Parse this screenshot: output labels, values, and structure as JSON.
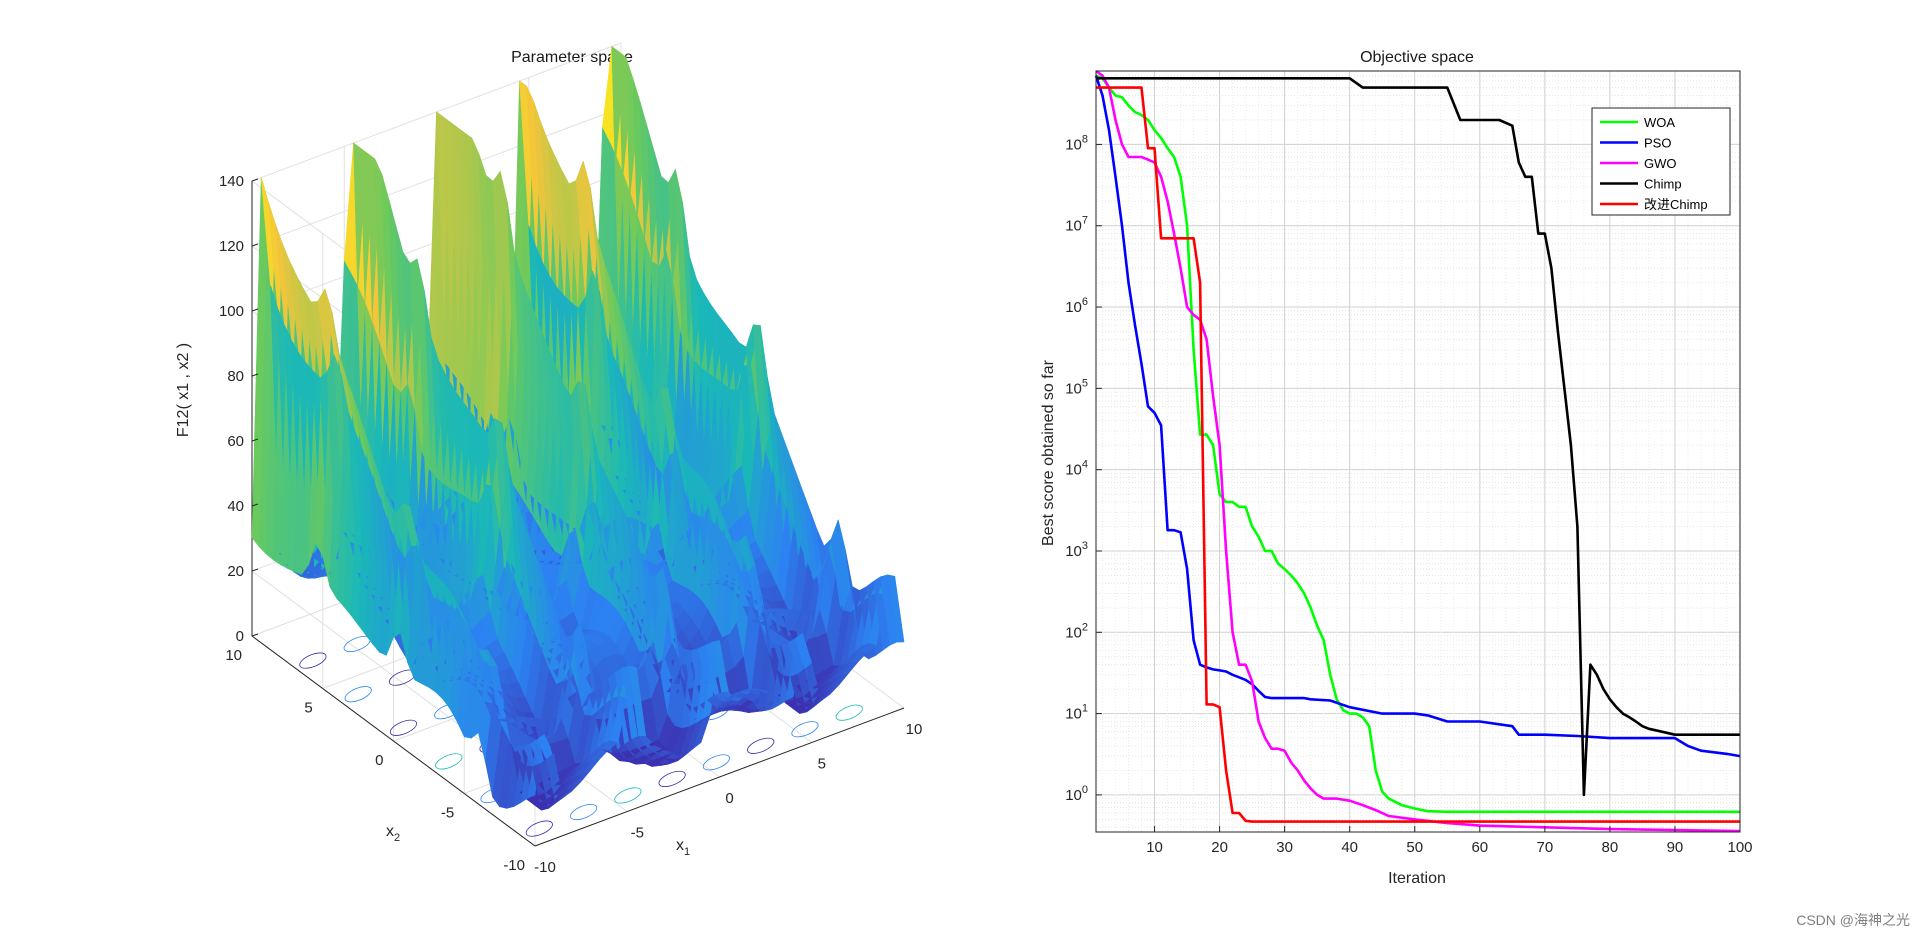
{
  "watermark": "CSDN @海神之光",
  "chart_data": [
    {
      "type": "surface3d",
      "title": "Parameter space",
      "xlabel_main": "x",
      "xlabel_sub": "1",
      "ylabel_main": "x",
      "ylabel_sub": "2",
      "zlabel": "F12( x1 , x2 )",
      "xlim": [
        -10,
        10
      ],
      "ylim": [
        -10,
        10
      ],
      "zlim": [
        0,
        140
      ],
      "x_ticks": [
        "-10",
        "-5",
        "0",
        "5",
        "10"
      ],
      "y_ticks": [
        "-10",
        "-5",
        "0",
        "5",
        "10"
      ],
      "z_ticks": [
        "0",
        "20",
        "40",
        "60",
        "80",
        "100",
        "120",
        "140"
      ],
      "colormap": [
        "#3e26a8",
        "#2c82f2",
        "#1ab8b8",
        "#6cca5c",
        "#f4c53b",
        "#f9fb0e"
      ]
    },
    {
      "type": "line",
      "title": "Objective space",
      "xlabel": "Iteration",
      "ylabel": "Best score obtained so far",
      "yscale": "log",
      "xlim": [
        1,
        100
      ],
      "ylim": [
        0.35,
        800000000
      ],
      "grid": true,
      "legend_position": "top-right",
      "x_ticks": [
        10,
        20,
        30,
        40,
        50,
        60,
        70,
        80,
        90,
        100
      ],
      "y_ticks": [
        {
          "value": 1,
          "base": "10",
          "exp": "0"
        },
        {
          "value": 10,
          "base": "10",
          "exp": "1"
        },
        {
          "value": 100,
          "base": "10",
          "exp": "2"
        },
        {
          "value": 1000,
          "base": "10",
          "exp": "3"
        },
        {
          "value": 10000,
          "base": "10",
          "exp": "4"
        },
        {
          "value": 100000,
          "base": "10",
          "exp": "5"
        },
        {
          "value": 1000000,
          "base": "10",
          "exp": "6"
        },
        {
          "value": 10000000,
          "base": "10",
          "exp": "7"
        },
        {
          "value": 100000000,
          "base": "10",
          "exp": "8"
        }
      ],
      "series": [
        {
          "name": "WOA",
          "color": "#00ff00",
          "x": [
            1,
            2,
            3,
            4,
            5,
            6,
            7,
            8,
            9,
            10,
            11,
            12,
            13,
            14,
            15,
            16,
            17,
            18,
            19,
            20,
            21,
            22,
            23,
            24,
            25,
            26,
            27,
            28,
            29,
            30,
            31,
            32,
            33,
            34,
            35,
            36,
            37,
            38,
            39,
            40,
            41,
            42,
            43,
            44,
            45,
            46,
            48,
            50,
            52,
            55,
            100
          ],
          "y": [
            700000000,
            650000000,
            500000000,
            400000000,
            380000000,
            300000000,
            250000000,
            230000000,
            200000000,
            150000000,
            120000000,
            90000000,
            70000000,
            40000000,
            10000000,
            300000,
            27000,
            27000,
            20000,
            5000,
            4000,
            4000,
            3500,
            3500,
            2000,
            1500,
            1000,
            1000,
            700,
            600,
            500,
            400,
            300,
            200,
            120,
            80,
            30,
            15,
            11,
            10,
            10,
            9,
            7,
            2,
            1.1,
            0.9,
            0.75,
            0.68,
            0.63,
            0.62,
            0.62
          ]
        },
        {
          "name": "PSO",
          "color": "#0000ff",
          "x": [
            1,
            2,
            3,
            4,
            5,
            6,
            7,
            8,
            9,
            10,
            11,
            12,
            13,
            14,
            15,
            16,
            17,
            18,
            19,
            20,
            21,
            22,
            23,
            24,
            25,
            26,
            27,
            28,
            33,
            34,
            37,
            40,
            45,
            50,
            52,
            55,
            60,
            65,
            66,
            70,
            75,
            80,
            90,
            92,
            94,
            98,
            100
          ],
          "y": [
            700000000,
            400000000,
            150000000,
            40000000,
            10000000,
            2000000,
            600000,
            200000,
            60000,
            50000,
            35000,
            1800,
            1800,
            1700,
            600,
            80,
            40,
            37,
            35,
            34,
            33,
            30,
            28,
            26,
            23,
            19,
            16,
            15.5,
            15.5,
            15,
            14.5,
            12,
            10,
            10,
            9.5,
            8,
            8,
            7,
            5.5,
            5.5,
            5.3,
            5,
            5,
            4,
            3.5,
            3.2,
            3
          ]
        },
        {
          "name": "GWO",
          "color": "#ff00ff",
          "x": [
            1,
            2,
            3,
            4,
            5,
            6,
            7,
            8,
            9,
            10,
            11,
            12,
            13,
            14,
            15,
            16,
            17,
            18,
            19,
            20,
            21,
            22,
            23,
            24,
            25,
            26,
            27,
            28,
            29,
            30,
            31,
            32,
            33,
            34,
            35,
            36,
            38,
            40,
            42,
            44,
            46,
            50,
            55,
            60,
            70,
            80,
            90,
            100
          ],
          "y": [
            800000000,
            700000000,
            500000000,
            200000000,
            100000000,
            70000000,
            70000000,
            70000000,
            65000000,
            60000000,
            40000000,
            20000000,
            8000000,
            3000000,
            1000000,
            800000,
            700000,
            400000,
            80000,
            20000,
            1000,
            100,
            40,
            40,
            25,
            8,
            5,
            3.7,
            3.7,
            3.5,
            2.5,
            2,
            1.5,
            1.2,
            1,
            0.9,
            0.9,
            0.85,
            0.75,
            0.65,
            0.55,
            0.5,
            0.45,
            0.42,
            0.4,
            0.38,
            0.37,
            0.36
          ]
        },
        {
          "name": "Chimp",
          "color": "#000000",
          "x": [
            1,
            30,
            40,
            42,
            50,
            55,
            57,
            60,
            63,
            65,
            66,
            67,
            68,
            69,
            70,
            71,
            72,
            73,
            74,
            75,
            76,
            77,
            78,
            79,
            80,
            81,
            82,
            83,
            84,
            85,
            86,
            88,
            90,
            100
          ],
          "y": [
            650000000,
            650000000,
            650000000,
            500000000,
            500000000,
            500000000,
            200000000,
            200000000,
            200000000,
            170000000,
            60000000,
            40000000,
            40000000,
            8000000,
            8000000,
            3000000,
            500000,
            100000,
            20000,
            2000,
            1,
            40,
            30,
            20,
            15,
            12,
            10,
            9,
            8,
            7,
            6.5,
            6,
            5.5,
            5.5
          ]
        },
        {
          "name": "改进Chimp",
          "color": "#ff0000",
          "x": [
            1,
            8,
            9,
            10,
            11,
            12,
            13,
            15,
            16,
            17,
            18,
            19,
            20,
            21,
            22,
            23,
            24,
            25,
            30,
            50,
            100
          ],
          "y": [
            500000000,
            500000000,
            90000000,
            90000000,
            7000000,
            7000000,
            7000000,
            7000000,
            7000000,
            2000000,
            13,
            13,
            12,
            2,
            0.6,
            0.6,
            0.48,
            0.47,
            0.47,
            0.47,
            0.47
          ]
        }
      ]
    }
  ]
}
